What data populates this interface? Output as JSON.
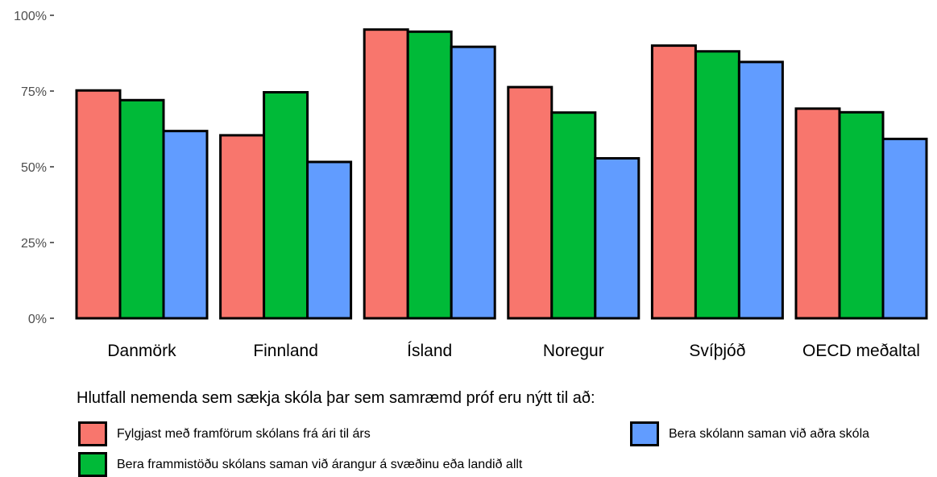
{
  "chart_data": {
    "type": "bar",
    "categories": [
      "Danmörk",
      "Finnland",
      "Ísland",
      "Noregur",
      "Svíþjóð",
      "OECD meðaltal"
    ],
    "series": [
      {
        "name": "Fylgjast með framförum skólans frá ári til árs",
        "color": "#F8766D",
        "values": [
          75.2,
          60.4,
          95.3,
          76.3,
          90.0,
          69.2
        ]
      },
      {
        "name": "Bera frammistöðu skólans saman við árangur á svæðinu eða landið allt",
        "color": "#00BA38",
        "values": [
          72.0,
          74.6,
          94.6,
          67.9,
          88.1,
          68.0
        ]
      },
      {
        "name": "Bera skólann saman við aðra skóla",
        "color": "#619CFF",
        "values": [
          61.8,
          51.6,
          89.6,
          52.8,
          84.6,
          59.2
        ]
      }
    ],
    "yticks": [
      "0%",
      "25%",
      "50%",
      "75%",
      "100%"
    ],
    "ylim": [
      0,
      100
    ],
    "grid": false,
    "legend_position": "bottom"
  },
  "legend": {
    "title": "Hlutfall nemenda sem sækja skóla þar sem samræmd próf eru nýtt til að:"
  }
}
